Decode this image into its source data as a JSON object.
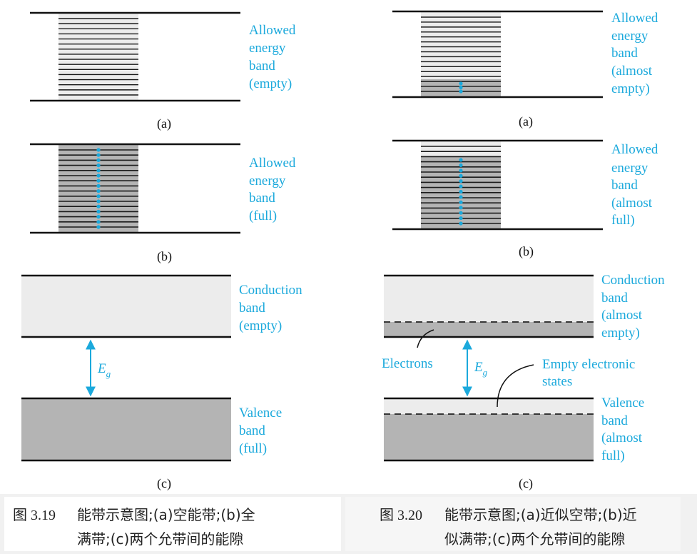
{
  "colors": {
    "label": "#1ba9dc",
    "band_light": "#ececec",
    "band_dark": "#b4b4b4",
    "line": "#111111"
  },
  "fig_left": {
    "a": {
      "label": [
        "Allowed",
        "energy",
        "band",
        "(empty)"
      ],
      "caption": "(a)"
    },
    "b": {
      "label": [
        "Allowed",
        "energy",
        "band",
        "(full)"
      ],
      "caption": "(b)"
    },
    "c": {
      "conduction": [
        "Conduction",
        "band",
        "(empty)"
      ],
      "valence": [
        "Valence",
        "band",
        "(full)"
      ],
      "gap_symbol": "E",
      "gap_sub": "g",
      "caption": "(c)"
    }
  },
  "fig_right": {
    "a": {
      "label": [
        "Allowed",
        "energy",
        "band",
        "(almost",
        "empty)"
      ],
      "caption": "(a)"
    },
    "b": {
      "label": [
        "Allowed",
        "energy",
        "band",
        "(almost",
        "full)"
      ],
      "caption": "(b)"
    },
    "c": {
      "conduction": [
        "Conduction",
        "band",
        "(almost",
        "empty)"
      ],
      "valence": [
        "Valence",
        "band",
        "(almost",
        "full)"
      ],
      "electrons": "Electrons",
      "empty_states": [
        "Empty electronic",
        "states"
      ],
      "gap_symbol": "E",
      "gap_sub": "g",
      "caption": "(c)"
    }
  },
  "captions": {
    "left": {
      "number": "图 3.19",
      "line1": "能带示意图;(a)空能带;(b)全",
      "line2": "满带;(c)两个允带间的能隙"
    },
    "right": {
      "number": "图 3.20",
      "line1": "能带示意图;(a)近似空带;(b)近",
      "line2": "似满带;(c)两个允带间的能隙"
    }
  }
}
